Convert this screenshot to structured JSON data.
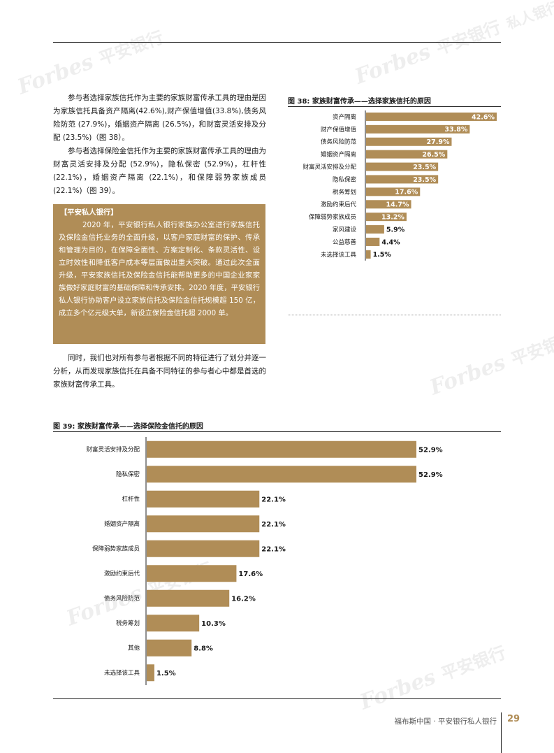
{
  "body": {
    "para1": "参与者选择家族信托作为主要的家族财富传承工具的理由是因为家族信托具备资产隔离(42.6%),财产保值增值(33.8%),债务风险防范 (27.9%)，婚姻资产隔离 (26.5%)，和财富灵活安排及分配 (23.5%)（图 38）。",
    "para2": "参与者选择保险金信托作为主要的家族财富传承工具的理由为财富灵活安排及分配 (52.9%)，隐私保密 (52.9%)，杠杆性 (22.1%)，婚姻资产隔离 (22.1%)，和保障弱势家族成员 (22.1%)（图 39）。",
    "para3": "同时，我们也对所有参与者根据不同的特征进行了划分并逐一分析，从而发现家族信托在具备不同特征的参与者心中都是首选的家族财富传承工具。"
  },
  "callout": {
    "title": "【平安私人银行】",
    "text": "2020 年，平安银行私人银行家族办公室进行家族信托及保险金信托业务的全面升级，以客户家庭财富的保护、传承和管理为目的，在保障全面性、方案定制化、条款灵活性、设立时效性和降低客户成本等层面做出重大突破。通过此次全面升级，平安家族信托及保险金信托能帮助更多的中国企业家家族做好家庭财富的基础保障和传承安排。2020 年度，平安银行私人银行协助客户设立家族信托及保险金信托规模超 150 亿，成立多个亿元级大单，新设立保险金信托超 2000 单。"
  },
  "chart_data": [
    {
      "type": "bar",
      "title": "图 38: 家族财富传承——选择家族信托的原因",
      "orientation": "horizontal",
      "categories": [
        "资产隔离",
        "财产保值增值",
        "债务风险防范",
        "婚姻资产隔离",
        "财富灵活安排及分配",
        "隐私保密",
        "税务筹划",
        "激励约束后代",
        "保障弱势家族成员",
        "家风建设",
        "公益慈善",
        "未选择该工具"
      ],
      "values": [
        42.6,
        33.8,
        27.9,
        26.5,
        23.5,
        23.5,
        17.6,
        14.7,
        13.2,
        5.9,
        4.4,
        1.5
      ],
      "labels": [
        "42.6%",
        "33.8%",
        "27.9%",
        "26.5%",
        "23.5%",
        "23.5%",
        "17.6%",
        "14.7%",
        "13.2%",
        "5.9%",
        "4.4%",
        "1.5%"
      ],
      "xlim": [
        0,
        42.6
      ],
      "grid": false,
      "bar_color": "#b08d57"
    },
    {
      "type": "bar",
      "title": "图 39: 家族财富传承——选择保险金信托的原因",
      "orientation": "horizontal",
      "categories": [
        "财富灵活安排及分配",
        "隐私保密",
        "杠杆性",
        "婚姻资产隔离",
        "保障弱势家族成员",
        "激励约束后代",
        "债务风险防范",
        "税务筹划",
        "其他",
        "未选择该工具"
      ],
      "values": [
        52.9,
        52.9,
        22.1,
        22.1,
        22.1,
        17.6,
        16.2,
        10.3,
        8.8,
        1.5
      ],
      "labels": [
        "52.9%",
        "52.9%",
        "22.1%",
        "22.1%",
        "22.1%",
        "17.6%",
        "16.2%",
        "10.3%",
        "8.8%",
        "1.5%"
      ],
      "xlim": [
        0,
        52.9
      ],
      "grid": false,
      "bar_color": "#b08d57"
    }
  ],
  "footer": {
    "text": "福布斯中国 · 平安银行私人银行",
    "page_number": "29"
  },
  "watermark": {
    "brand": "Forbes",
    "bank": "平安银行",
    "tag": "私人银行"
  }
}
